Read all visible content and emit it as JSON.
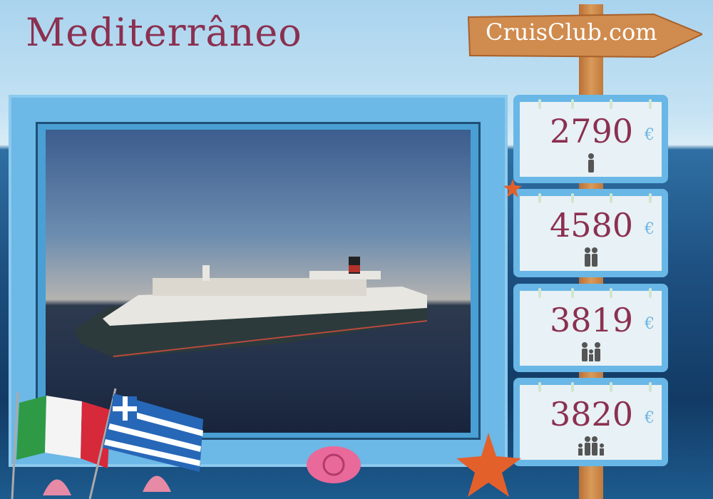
{
  "title": "Mediterrâneo",
  "brand": "CruisClub.com",
  "prices": [
    {
      "amount": "2790",
      "currency": "€",
      "icon": "single-person-icon"
    },
    {
      "amount": "4580",
      "currency": "€",
      "icon": "couple-icon"
    },
    {
      "amount": "3819",
      "currency": "€",
      "icon": "family-one-child-icon"
    },
    {
      "amount": "3820",
      "currency": "€",
      "icon": "family-two-children-icon"
    }
  ],
  "flags": [
    "italy-flag-icon",
    "greece-flag-icon"
  ],
  "colors": {
    "title": "#8b3050",
    "frame": "#6cb8e6",
    "euro": "#6cb6e3"
  }
}
